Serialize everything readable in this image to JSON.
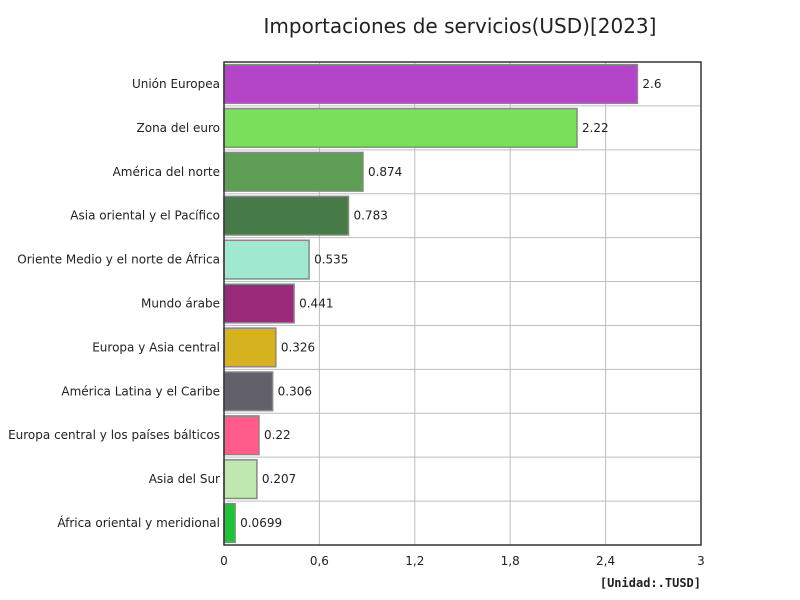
{
  "title": "Importaciones de servicios(USD)[2023]",
  "unit": "[Unidad:.TUSD]",
  "chart_data": {
    "type": "bar",
    "orientation": "horizontal",
    "title": "Importaciones de servicios(USD)[2023]",
    "xlabel": "",
    "ylabel": "",
    "xlim": [
      0,
      3
    ],
    "x_ticks": [
      "0",
      "0,6",
      "1,2",
      "1,8",
      "2,4",
      "3"
    ],
    "x_tick_values": [
      0,
      0.6,
      1.2,
      1.8,
      2.4,
      3
    ],
    "grid": true,
    "categories": [
      "Unión Europea",
      "Zona del euro",
      "América del norte",
      "Asia oriental y el Pacífico",
      "Oriente Medio y el norte de África",
      "Mundo árabe",
      "Europa y Asia central",
      "América Latina y el Caribe",
      "Europa central y los países bálticos",
      "Asia del Sur",
      "África oriental y meridional"
    ],
    "values": [
      2.6,
      2.22,
      0.874,
      0.783,
      0.535,
      0.441,
      0.326,
      0.306,
      0.22,
      0.207,
      0.0699
    ],
    "value_labels": [
      "2.6",
      "2.22",
      "0.874",
      "0.783",
      "0.535",
      "0.441",
      "0.326",
      "0.306",
      "0.22",
      "0.207",
      "0.0699"
    ],
    "colors": [
      "#b444c8",
      "#7ae05c",
      "#5f9e55",
      "#467a46",
      "#a0e8cf",
      "#9c2a7a",
      "#d6b21e",
      "#62606a",
      "#ff5c8a",
      "#bfe8b0",
      "#1ec436"
    ]
  }
}
